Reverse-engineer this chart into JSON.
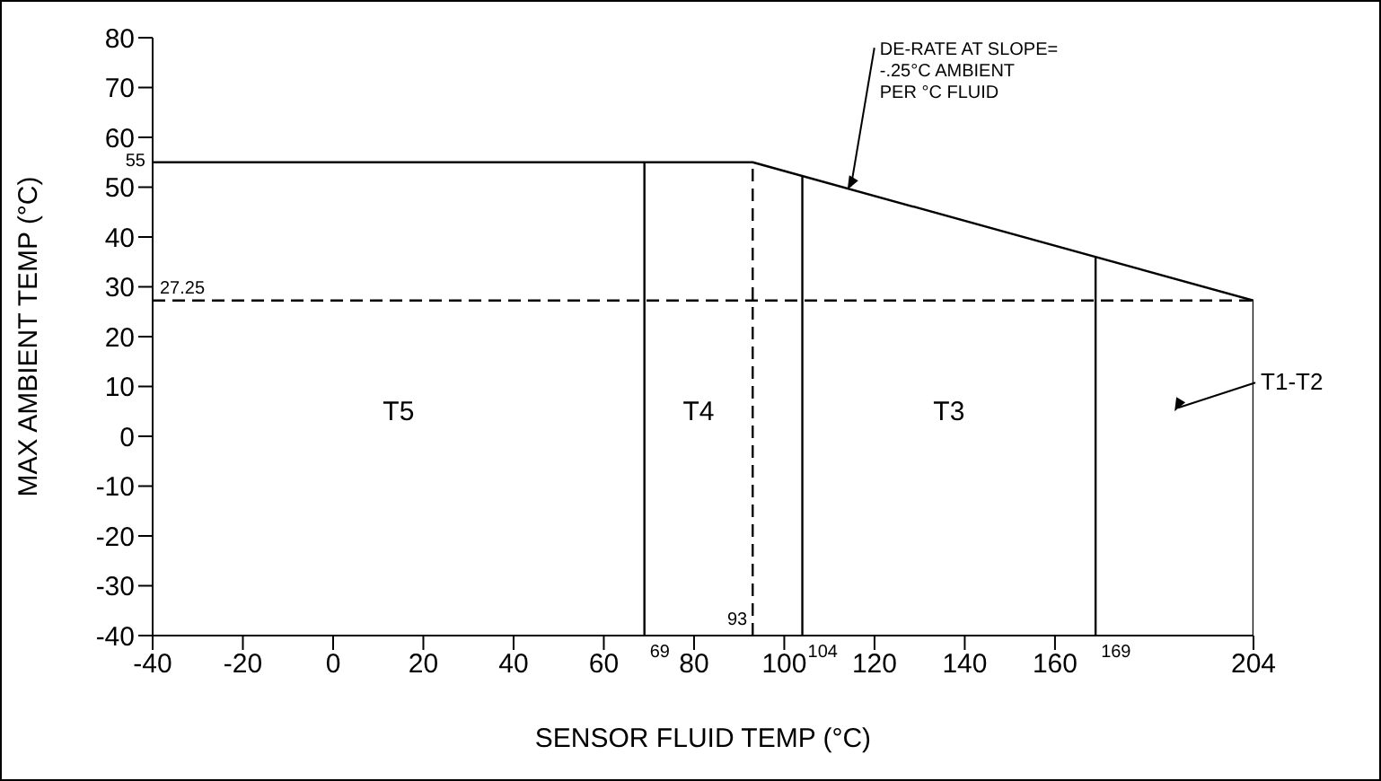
{
  "chart_data": {
    "type": "line",
    "xlabel": "SENSOR FLUID TEMP (°C)",
    "ylabel": "MAX AMBIENT TEMP (°C)",
    "xlim": [
      -40,
      204
    ],
    "xticks": [
      -40,
      -20,
      0,
      20,
      40,
      60,
      80,
      100,
      120,
      140,
      160,
      204
    ],
    "ylim": [
      -40,
      80
    ],
    "yticks": [
      -40,
      -30,
      -20,
      -10,
      0,
      10,
      20,
      30,
      40,
      50,
      60,
      70,
      80
    ],
    "marker": "none",
    "series": [
      {
        "color": "#000000",
        "x": [
          -40,
          93,
          204
        ],
        "values": [
          55,
          55,
          27.25
        ],
        "line_style": "solid"
      },
      {
        "color": "#000000",
        "x": [
          69,
          69
        ],
        "values": [
          -40,
          55
        ],
        "line_style": "solid"
      },
      {
        "color": "#000000",
        "x": [
          93,
          93
        ],
        "values": [
          -40,
          55
        ],
        "line_style": "dashed"
      },
      {
        "color": "#000000",
        "x": [
          104,
          104
        ],
        "values": [
          -40,
          52.25
        ],
        "line_style": "solid"
      },
      {
        "color": "#000000",
        "x": [
          169,
          169
        ],
        "values": [
          -40,
          36
        ],
        "line_style": "solid"
      },
      {
        "color": "#000000",
        "x": [
          204,
          204
        ],
        "values": [
          -40,
          27.25
        ],
        "line_style": "solid"
      },
      {
        "color": "#000000",
        "x": [
          -40,
          204
        ],
        "values": [
          27.25,
          27.25
        ],
        "line_style": "dashed"
      }
    ],
    "annotations": [
      {
        "text": "55",
        "x": -40,
        "y": 55
      },
      {
        "text": "27.25",
        "x": -40,
        "y": 27.25
      },
      {
        "text": "69",
        "x": 69,
        "y": -40
      },
      {
        "text": "93",
        "x": 93,
        "y": -40
      },
      {
        "text": "104",
        "x": 104,
        "y": -40
      },
      {
        "text": "169",
        "x": 169,
        "y": -40
      },
      "T5",
      "T4",
      "T3",
      "T1-T2",
      {
        "text": "DE-RATE AT SLOPE=\n-.25°C AMBIENT\nPER °C FLUID",
        "x": 114,
        "y": 49.5
      }
    ]
  }
}
